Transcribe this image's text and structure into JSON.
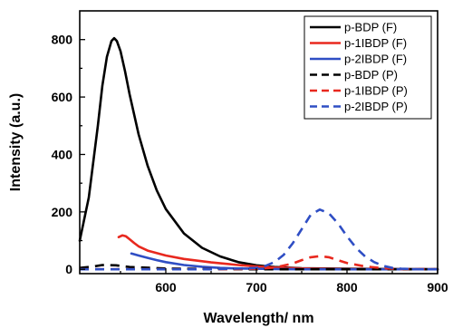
{
  "chart_data": {
    "type": "line",
    "xlabel": "Wavelength/ nm",
    "ylabel": "Intensity (a.u.)",
    "xlim": [
      505,
      900
    ],
    "ylim": [
      -15,
      900
    ],
    "xticks": [
      600,
      700,
      800,
      900
    ],
    "yticks": [
      0,
      200,
      400,
      600,
      800
    ],
    "legend_position": "top-right",
    "grid": false,
    "series": [
      {
        "name": "p-BDP (F)",
        "color": "#000000",
        "dash": "solid",
        "x": [
          505,
          515,
          525,
          530,
          535,
          540,
          543,
          546,
          550,
          555,
          560,
          570,
          580,
          590,
          600,
          620,
          640,
          660,
          680,
          700,
          720,
          750,
          800,
          850,
          900
        ],
        "y": [
          100,
          250,
          500,
          640,
          740,
          795,
          805,
          795,
          760,
          690,
          610,
          470,
          360,
          275,
          210,
          125,
          75,
          45,
          25,
          14,
          8,
          4,
          2,
          1,
          0
        ]
      },
      {
        "name": "p-1IBDP (F)",
        "color": "#e8281e",
        "dash": "solid",
        "x": [
          548,
          552,
          556,
          560,
          565,
          570,
          580,
          600,
          620,
          650,
          680,
          700,
          720,
          750,
          800,
          850,
          900
        ],
        "y": [
          112,
          118,
          115,
          105,
          92,
          80,
          65,
          48,
          36,
          24,
          15,
          10,
          6,
          3,
          1,
          0,
          0
        ]
      },
      {
        "name": "p-2IBDP (F)",
        "color": "#2f4ec4",
        "dash": "solid",
        "x": [
          562,
          570,
          580,
          590,
          600,
          620,
          640,
          660,
          680,
          700,
          720,
          750,
          800,
          850,
          900
        ],
        "y": [
          55,
          48,
          40,
          32,
          25,
          15,
          9,
          5,
          3,
          2,
          1,
          0,
          0,
          0,
          0
        ]
      },
      {
        "name": "p-BDP (P)",
        "color": "#000000",
        "dash": "dashed",
        "x": [
          505,
          520,
          530,
          545,
          560,
          600,
          650,
          700,
          750,
          800,
          850,
          900
        ],
        "y": [
          5,
          10,
          15,
          14,
          8,
          3,
          1,
          0,
          0,
          0,
          0,
          0
        ]
      },
      {
        "name": "p-1IBDP (P)",
        "color": "#e8281e",
        "dash": "dashed",
        "x": [
          505,
          650,
          700,
          720,
          740,
          750,
          760,
          770,
          780,
          790,
          800,
          820,
          840,
          860,
          900
        ],
        "y": [
          0,
          0,
          2,
          6,
          20,
          32,
          42,
          46,
          42,
          32,
          22,
          10,
          4,
          1,
          0
        ]
      },
      {
        "name": "p-2IBDP (P)",
        "color": "#2f4ec4",
        "dash": "dashed",
        "x": [
          505,
          650,
          700,
          710,
          720,
          730,
          740,
          750,
          760,
          770,
          780,
          790,
          800,
          810,
          820,
          830,
          840,
          850,
          860,
          880,
          900
        ],
        "y": [
          0,
          0,
          5,
          12,
          25,
          50,
          90,
          140,
          190,
          208,
          195,
          160,
          115,
          75,
          45,
          25,
          12,
          5,
          2,
          0,
          0
        ]
      }
    ]
  }
}
